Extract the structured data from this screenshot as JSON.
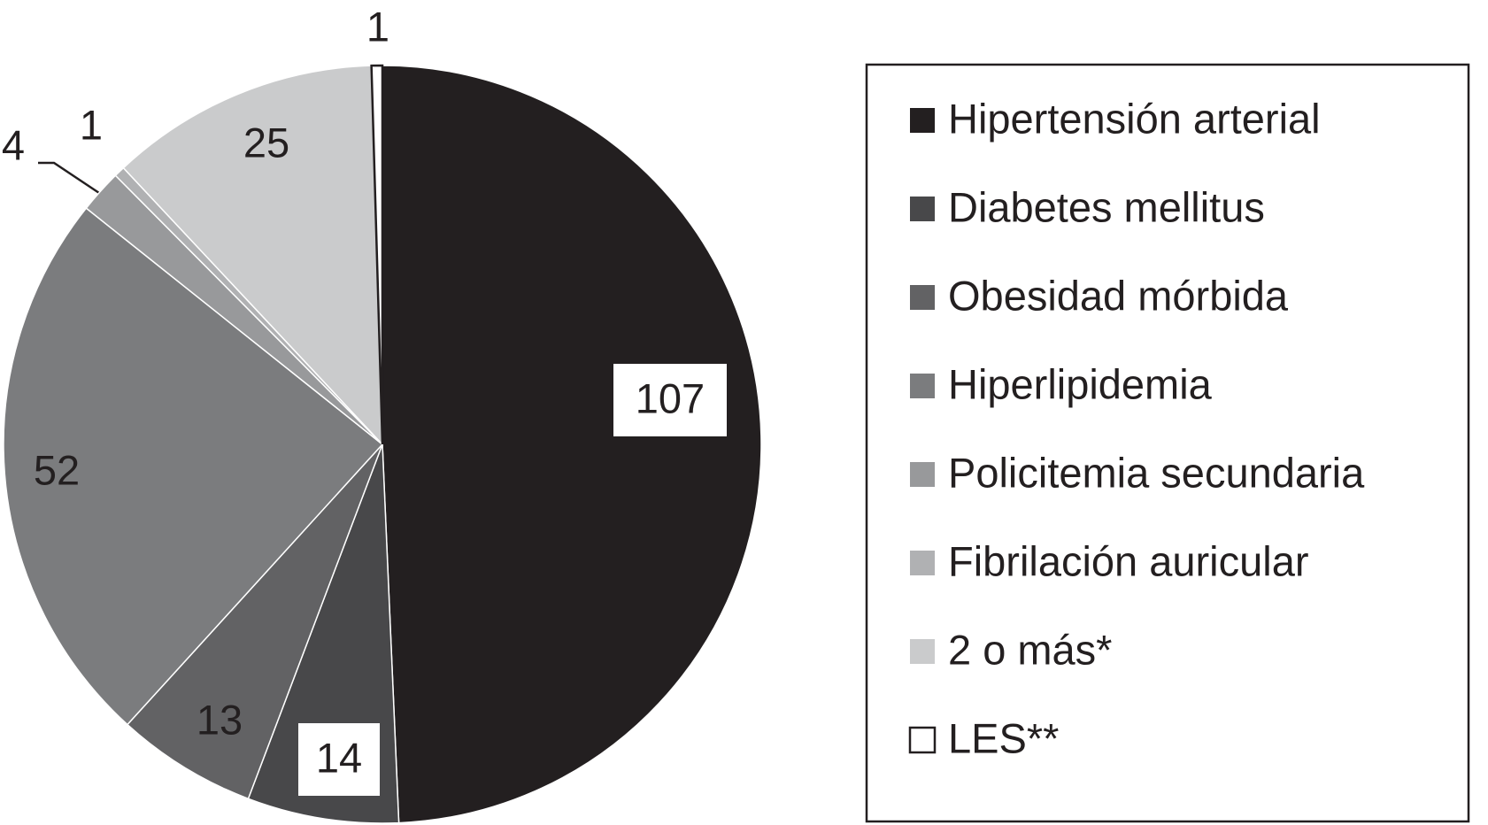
{
  "chart_data": {
    "type": "pie",
    "categories": [
      "Hipertensión arterial",
      "Diabetes mellitus",
      "Obesidad mórbida",
      "Hiperlipidemia",
      "Policitemia secundaria",
      "Fibrilación auricular",
      "2 o más*",
      "LES**"
    ],
    "values": [
      107,
      14,
      13,
      52,
      4,
      1,
      25,
      1
    ],
    "colors": [
      "#231f20",
      "#48484a",
      "#626264",
      "#7b7c7e",
      "#98999b",
      "#b0b1b3",
      "#cacbcc",
      "#ffffff"
    ],
    "legend": "right"
  }
}
